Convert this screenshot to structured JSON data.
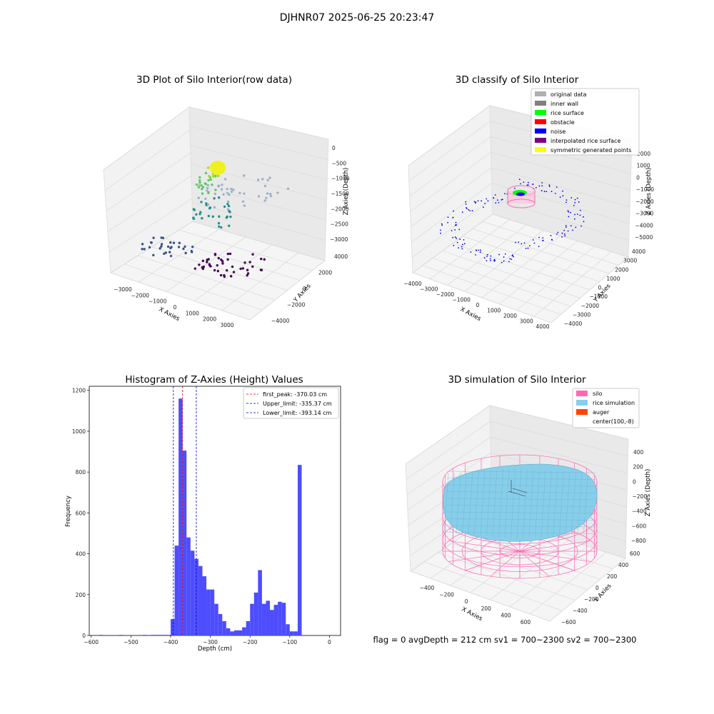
{
  "suptitle": "DJHNR07 2025-06-25 20:23:47",
  "footer": "flag = 0     avgDepth = 212 cm  sv1 = 700~2300  sv2 = 700~2300",
  "colors": {
    "hist_bar": "#4d4dff",
    "first_peak": "#ff0000",
    "limit_line": "#0000cc",
    "silo": "#ff69b4",
    "rice": "#87ceeb",
    "auger": "#ff4500"
  },
  "chart_data": [
    {
      "type": "scatter",
      "subtype": "3d",
      "title": "3D Plot of Silo Interior(row data)",
      "xlabel": "X Axies",
      "ylabel": "Y Axies",
      "zlabel": "Z Axies (Depth)",
      "x_ticks": [
        "−3000",
        "−2000",
        "−1000",
        "0",
        "1000",
        "2000",
        "3000"
      ],
      "y_ticks": [
        "−4000",
        "−2000",
        "0",
        "2000",
        "4000"
      ],
      "z_ticks": [
        "0",
        "−500",
        "−1000",
        "−1500",
        "−2000",
        "−2500",
        "−3000"
      ],
      "colormap": "viridis"
    },
    {
      "type": "scatter",
      "subtype": "3d",
      "title": "3D classify of Silo Interior",
      "xlabel": "X Axies",
      "ylabel": "Y Axies",
      "zlabel": "Z Axies (Depth)",
      "x_ticks": [
        "−4000",
        "−3000",
        "−2000",
        "−1000",
        "0",
        "1000",
        "2000",
        "3000",
        "4000"
      ],
      "y_ticks": [
        "−4000",
        "−3000",
        "−2000",
        "−1000",
        "0",
        "1000",
        "2000",
        "3000",
        "4000"
      ],
      "z_ticks": [
        "2000",
        "1000",
        "0",
        "−1000",
        "−2000",
        "−3000",
        "−4000",
        "−5000"
      ],
      "legend_position": "top-right",
      "legend": [
        {
          "label": "original data",
          "color": "#b0b0b0"
        },
        {
          "label": "inner wall",
          "color": "#808080"
        },
        {
          "label": "rice surface",
          "color": "#00ff00"
        },
        {
          "label": "obstacle",
          "color": "#ff0000"
        },
        {
          "label": "noise",
          "color": "#0000ff"
        },
        {
          "label": "interpolated rice surface",
          "color": "#800080"
        },
        {
          "label": "symmetric generated points",
          "color": "#ffff00"
        }
      ]
    },
    {
      "type": "bar",
      "subtype": "histogram",
      "title": "Histogram of Z-Axies (Height) Values",
      "xlabel": "Depth (cm)",
      "ylabel": "Frequency",
      "xlim": [
        -605,
        28
      ],
      "ylim": [
        0,
        1220
      ],
      "x_ticks": [
        -600,
        -500,
        -400,
        -300,
        -200,
        -100,
        0
      ],
      "x_tick_labels": [
        "−600",
        "−500",
        "−400",
        "−300",
        "−200",
        "−100",
        "0"
      ],
      "y_ticks": [
        0,
        200,
        400,
        600,
        800,
        1000,
        1200
      ],
      "bin_width": 10,
      "bins": [
        {
          "start": -580,
          "count": 3
        },
        {
          "start": -530,
          "count": 3
        },
        {
          "start": -470,
          "count": 3
        },
        {
          "start": -450,
          "count": 3
        },
        {
          "start": -440,
          "count": 3
        },
        {
          "start": -430,
          "count": 3
        },
        {
          "start": -420,
          "count": 3
        },
        {
          "start": -410,
          "count": 3
        },
        {
          "start": -400,
          "count": 80
        },
        {
          "start": -390,
          "count": 440
        },
        {
          "start": -380,
          "count": 1160
        },
        {
          "start": -370,
          "count": 905
        },
        {
          "start": -360,
          "count": 480
        },
        {
          "start": -350,
          "count": 415
        },
        {
          "start": -340,
          "count": 375
        },
        {
          "start": -330,
          "count": 340
        },
        {
          "start": -320,
          "count": 290
        },
        {
          "start": -310,
          "count": 225
        },
        {
          "start": -300,
          "count": 225
        },
        {
          "start": -290,
          "count": 155
        },
        {
          "start": -280,
          "count": 105
        },
        {
          "start": -270,
          "count": 70
        },
        {
          "start": -260,
          "count": 35
        },
        {
          "start": -250,
          "count": 20
        },
        {
          "start": -240,
          "count": 25
        },
        {
          "start": -230,
          "count": 25
        },
        {
          "start": -220,
          "count": 40
        },
        {
          "start": -210,
          "count": 70
        },
        {
          "start": -200,
          "count": 155
        },
        {
          "start": -190,
          "count": 210
        },
        {
          "start": -180,
          "count": 320
        },
        {
          "start": -170,
          "count": 155
        },
        {
          "start": -160,
          "count": 170
        },
        {
          "start": -150,
          "count": 125
        },
        {
          "start": -140,
          "count": 150
        },
        {
          "start": -130,
          "count": 165
        },
        {
          "start": -120,
          "count": 160
        },
        {
          "start": -110,
          "count": 55
        },
        {
          "start": -100,
          "count": 20
        },
        {
          "start": -90,
          "count": 20
        },
        {
          "start": -80,
          "count": 835
        }
      ],
      "vlines": [
        {
          "label": "first_peak: -370.03 cm",
          "x": -370.03,
          "color": "#ff0000"
        },
        {
          "label": "Upper_limit: -335.37 cm",
          "x": -335.37,
          "color": "#0000cc"
        },
        {
          "label": "Lower_limit: -393.14 cm",
          "x": -393.14,
          "color": "#0000cc"
        }
      ],
      "legend_position": "top-right"
    },
    {
      "type": "scatter",
      "subtype": "3d-surface",
      "title": "3D simulation of Silo Interior",
      "xlabel": "X Axies",
      "ylabel": "Y Axies",
      "zlabel": "Z Axies (Depth)",
      "x_ticks": [
        "−400",
        "−200",
        "0",
        "200",
        "400",
        "600"
      ],
      "y_ticks": [
        "−600",
        "−400",
        "−200",
        "0",
        "200",
        "400",
        "600"
      ],
      "z_ticks": [
        "400",
        "200",
        "0",
        "−200",
        "−400",
        "−600",
        "−800"
      ],
      "legend_position": "top-right",
      "legend": [
        {
          "label": "silo",
          "color": "#ff69b4"
        },
        {
          "label": "rice simulation",
          "color": "#87ceeb"
        },
        {
          "label": "auger",
          "color": "#ff4500"
        },
        {
          "label": "center(100,-8)",
          "color": ""
        }
      ]
    }
  ]
}
